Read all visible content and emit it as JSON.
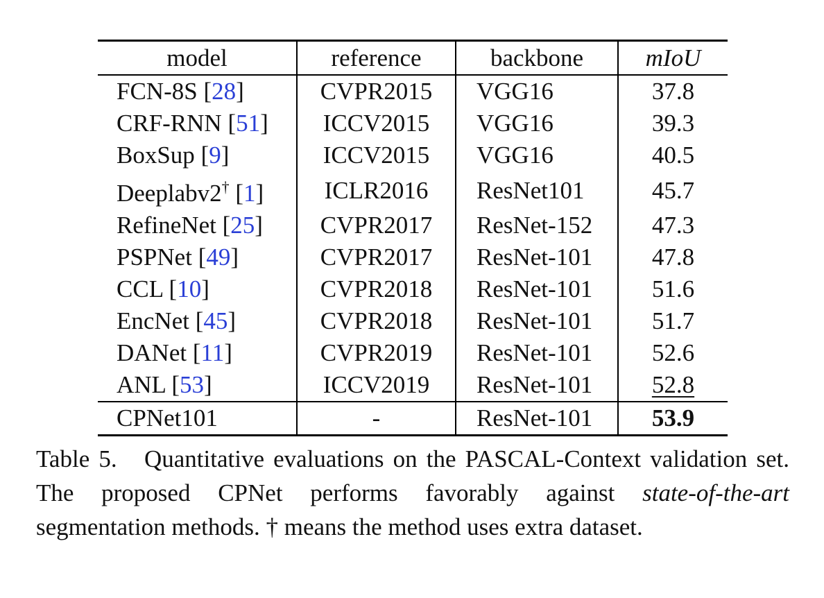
{
  "table": {
    "headers": {
      "model": "model",
      "reference": "reference",
      "backbone": "backbone",
      "miou": "mIoU"
    },
    "rows": [
      {
        "model": "FCN-8S",
        "cite": "28",
        "dagger": "",
        "reference": "CVPR2015",
        "backbone": "VGG16",
        "miou": "37.8"
      },
      {
        "model": "CRF-RNN",
        "cite": "51",
        "dagger": "",
        "reference": "ICCV2015",
        "backbone": "VGG16",
        "miou": "39.3"
      },
      {
        "model": "BoxSup",
        "cite": "9",
        "dagger": "",
        "reference": "ICCV2015",
        "backbone": "VGG16",
        "miou": "40.5"
      },
      {
        "model": "Deeplabv2",
        "cite": "1",
        "dagger": "†",
        "reference": "ICLR2016",
        "backbone": "ResNet101",
        "miou": "45.7"
      },
      {
        "model": "RefineNet",
        "cite": "25",
        "dagger": "",
        "reference": "CVPR2017",
        "backbone": "ResNet-152",
        "miou": "47.3"
      },
      {
        "model": "PSPNet",
        "cite": "49",
        "dagger": "",
        "reference": "CVPR2017",
        "backbone": "ResNet-101",
        "miou": "47.8"
      },
      {
        "model": "CCL",
        "cite": "10",
        "dagger": "",
        "reference": "CVPR2018",
        "backbone": "ResNet-101",
        "miou": "51.6"
      },
      {
        "model": "EncNet",
        "cite": "45",
        "dagger": "",
        "reference": "CVPR2018",
        "backbone": "ResNet-101",
        "miou": "51.7"
      },
      {
        "model": "DANet",
        "cite": "11",
        "dagger": "",
        "reference": "CVPR2019",
        "backbone": "ResNet-101",
        "miou": "52.6"
      },
      {
        "model": "ANL",
        "cite": "53",
        "dagger": "",
        "reference": "ICCV2019",
        "backbone": "ResNet-101",
        "miou": "52.8"
      }
    ],
    "ours": {
      "model": "CPNet101",
      "reference": "-",
      "backbone": "ResNet-101",
      "miou": "53.9"
    }
  },
  "caption": {
    "label": "Table 5.",
    "text1": "Quantitative evaluations on the PASCAL-Context validation set. The proposed CPNet performs favorably against ",
    "italic": "state-of-the-art",
    "text2": " segmentation methods. † means the method uses extra dataset."
  },
  "colors": {
    "citation": "#2a3fd6"
  }
}
